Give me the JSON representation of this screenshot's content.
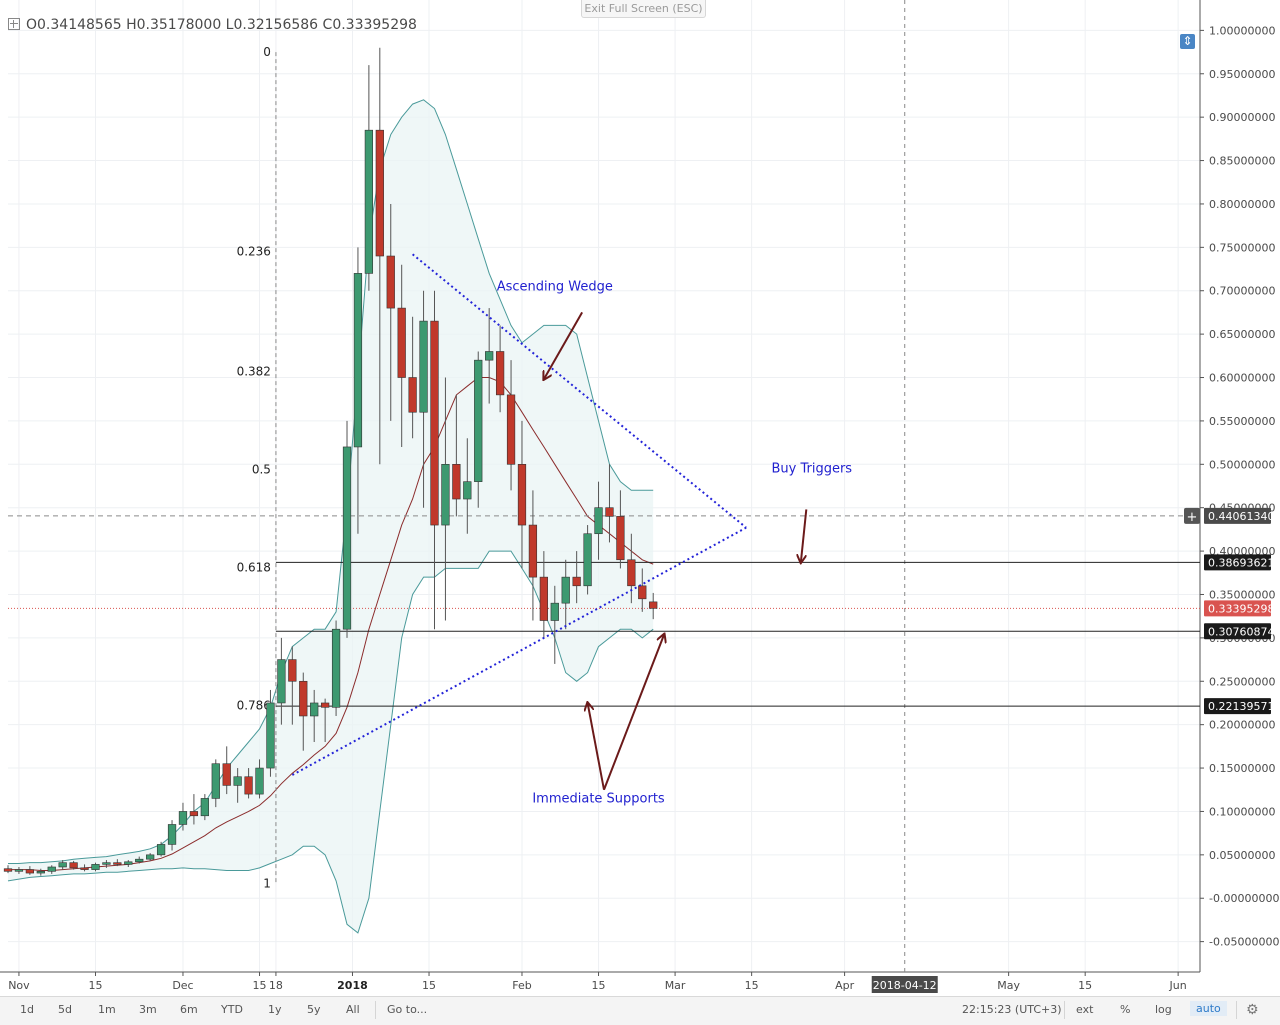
{
  "header": {
    "ohlc_text": "O0.34148565  H0.35178000  L0.32156586  C0.33395298",
    "exit_fullscreen": "Exit Full Screen (ESC)"
  },
  "chart_data": {
    "type": "candlestick",
    "y_axis": {
      "range": [
        -0.085,
        1.035
      ],
      "ticks": [
        1.0,
        0.95,
        0.9,
        0.85,
        0.8,
        0.75,
        0.7,
        0.65,
        0.6,
        0.55,
        0.5,
        0.45,
        0.4,
        0.35,
        0.3,
        0.25,
        0.2,
        0.15,
        0.1,
        0.05,
        0.0,
        -0.05
      ],
      "tick_labels": [
        "1.00000000",
        "0.95000000",
        "0.90000000",
        "0.85000000",
        "0.80000000",
        "0.75000000",
        "0.70000000",
        "0.65000000",
        "0.60000000",
        "0.55000000",
        "0.50000000",
        "0.45000000",
        "0.40000000",
        "0.35000000",
        "0.30000000",
        "0.25000000",
        "0.20000000",
        "0.15000000",
        "0.10000000",
        "0.05000000",
        "-0.00000000",
        "-0.05000000"
      ]
    },
    "x_axis": {
      "start": "2017-10-30",
      "end": "2018-06-05",
      "tick_labels": [
        {
          "date": "2017-11-01",
          "label": "Nov"
        },
        {
          "date": "2017-11-15",
          "label": "15"
        },
        {
          "date": "2017-12-01",
          "label": "Dec"
        },
        {
          "date": "2017-12-15",
          "label": "15"
        },
        {
          "date": "2017-12-18",
          "label": "18"
        },
        {
          "date": "2018-01-01",
          "label": "2018"
        },
        {
          "date": "2018-01-15",
          "label": "15"
        },
        {
          "date": "2018-02-01",
          "label": "Feb"
        },
        {
          "date": "2018-02-15",
          "label": "15"
        },
        {
          "date": "2018-03-01",
          "label": "Mar"
        },
        {
          "date": "2018-03-15",
          "label": "15"
        },
        {
          "date": "2018-04-01",
          "label": "Apr"
        },
        {
          "date": "2018-05-01",
          "label": "May"
        },
        {
          "date": "2018-05-15",
          "label": "15"
        },
        {
          "date": "2018-06-01",
          "label": "Jun"
        }
      ],
      "cursor": {
        "date": "2018-04-12",
        "label": "2018-04-12"
      }
    },
    "candles": [
      {
        "d": "2017-10-30",
        "o": 0.034,
        "h": 0.038,
        "l": 0.029,
        "c": 0.031
      },
      {
        "d": "2017-11-01",
        "o": 0.031,
        "h": 0.036,
        "l": 0.028,
        "c": 0.033
      },
      {
        "d": "2017-11-03",
        "o": 0.033,
        "h": 0.037,
        "l": 0.027,
        "c": 0.029
      },
      {
        "d": "2017-11-05",
        "o": 0.029,
        "h": 0.034,
        "l": 0.026,
        "c": 0.031
      },
      {
        "d": "2017-11-07",
        "o": 0.031,
        "h": 0.038,
        "l": 0.028,
        "c": 0.036
      },
      {
        "d": "2017-11-09",
        "o": 0.036,
        "h": 0.044,
        "l": 0.033,
        "c": 0.041
      },
      {
        "d": "2017-11-11",
        "o": 0.041,
        "h": 0.043,
        "l": 0.033,
        "c": 0.035
      },
      {
        "d": "2017-11-13",
        "o": 0.035,
        "h": 0.039,
        "l": 0.031,
        "c": 0.033
      },
      {
        "d": "2017-11-15",
        "o": 0.033,
        "h": 0.041,
        "l": 0.031,
        "c": 0.039
      },
      {
        "d": "2017-11-17",
        "o": 0.039,
        "h": 0.044,
        "l": 0.035,
        "c": 0.041
      },
      {
        "d": "2017-11-19",
        "o": 0.041,
        "h": 0.045,
        "l": 0.037,
        "c": 0.039
      },
      {
        "d": "2017-11-21",
        "o": 0.039,
        "h": 0.044,
        "l": 0.036,
        "c": 0.042
      },
      {
        "d": "2017-11-23",
        "o": 0.042,
        "h": 0.048,
        "l": 0.04,
        "c": 0.045
      },
      {
        "d": "2017-11-25",
        "o": 0.045,
        "h": 0.052,
        "l": 0.043,
        "c": 0.05
      },
      {
        "d": "2017-11-27",
        "o": 0.05,
        "h": 0.065,
        "l": 0.048,
        "c": 0.062
      },
      {
        "d": "2017-11-29",
        "o": 0.062,
        "h": 0.09,
        "l": 0.055,
        "c": 0.085
      },
      {
        "d": "2017-12-01",
        "o": 0.085,
        "h": 0.11,
        "l": 0.078,
        "c": 0.1
      },
      {
        "d": "2017-12-03",
        "o": 0.1,
        "h": 0.12,
        "l": 0.085,
        "c": 0.095
      },
      {
        "d": "2017-12-05",
        "o": 0.095,
        "h": 0.12,
        "l": 0.09,
        "c": 0.115
      },
      {
        "d": "2017-12-07",
        "o": 0.115,
        "h": 0.16,
        "l": 0.105,
        "c": 0.155
      },
      {
        "d": "2017-12-09",
        "o": 0.155,
        "h": 0.175,
        "l": 0.12,
        "c": 0.13
      },
      {
        "d": "2017-12-11",
        "o": 0.13,
        "h": 0.15,
        "l": 0.11,
        "c": 0.14
      },
      {
        "d": "2017-12-13",
        "o": 0.14,
        "h": 0.15,
        "l": 0.115,
        "c": 0.12
      },
      {
        "d": "2017-12-15",
        "o": 0.12,
        "h": 0.16,
        "l": 0.115,
        "c": 0.15
      },
      {
        "d": "2017-12-17",
        "o": 0.15,
        "h": 0.24,
        "l": 0.14,
        "c": 0.225
      },
      {
        "d": "2017-12-19",
        "o": 0.225,
        "h": 0.3,
        "l": 0.2,
        "c": 0.275
      },
      {
        "d": "2017-12-21",
        "o": 0.275,
        "h": 0.29,
        "l": 0.2,
        "c": 0.25
      },
      {
        "d": "2017-12-23",
        "o": 0.25,
        "h": 0.26,
        "l": 0.17,
        "c": 0.21
      },
      {
        "d": "2017-12-25",
        "o": 0.21,
        "h": 0.24,
        "l": 0.18,
        "c": 0.225
      },
      {
        "d": "2017-12-27",
        "o": 0.225,
        "h": 0.23,
        "l": 0.18,
        "c": 0.22
      },
      {
        "d": "2017-12-29",
        "o": 0.22,
        "h": 0.32,
        "l": 0.21,
        "c": 0.31
      },
      {
        "d": "2017-12-31",
        "o": 0.31,
        "h": 0.55,
        "l": 0.3,
        "c": 0.52
      },
      {
        "d": "2018-01-02",
        "o": 0.52,
        "h": 0.75,
        "l": 0.42,
        "c": 0.72
      },
      {
        "d": "2018-01-04",
        "o": 0.72,
        "h": 0.96,
        "l": 0.7,
        "c": 0.885
      },
      {
        "d": "2018-01-06",
        "o": 0.885,
        "h": 0.98,
        "l": 0.5,
        "c": 0.74
      },
      {
        "d": "2018-01-08",
        "o": 0.74,
        "h": 0.8,
        "l": 0.55,
        "c": 0.68
      },
      {
        "d": "2018-01-10",
        "o": 0.68,
        "h": 0.73,
        "l": 0.52,
        "c": 0.6
      },
      {
        "d": "2018-01-12",
        "o": 0.6,
        "h": 0.67,
        "l": 0.53,
        "c": 0.56
      },
      {
        "d": "2018-01-14",
        "o": 0.56,
        "h": 0.7,
        "l": 0.45,
        "c": 0.665
      },
      {
        "d": "2018-01-16",
        "o": 0.665,
        "h": 0.7,
        "l": 0.31,
        "c": 0.43
      },
      {
        "d": "2018-01-18",
        "o": 0.43,
        "h": 0.6,
        "l": 0.32,
        "c": 0.5
      },
      {
        "d": "2018-01-20",
        "o": 0.5,
        "h": 0.58,
        "l": 0.44,
        "c": 0.46
      },
      {
        "d": "2018-01-22",
        "o": 0.46,
        "h": 0.53,
        "l": 0.42,
        "c": 0.48
      },
      {
        "d": "2018-01-24",
        "o": 0.48,
        "h": 0.63,
        "l": 0.45,
        "c": 0.62
      },
      {
        "d": "2018-01-26",
        "o": 0.62,
        "h": 0.68,
        "l": 0.57,
        "c": 0.63
      },
      {
        "d": "2018-01-28",
        "o": 0.63,
        "h": 0.66,
        "l": 0.56,
        "c": 0.58
      },
      {
        "d": "2018-01-30",
        "o": 0.58,
        "h": 0.62,
        "l": 0.47,
        "c": 0.5
      },
      {
        "d": "2018-02-01",
        "o": 0.5,
        "h": 0.55,
        "l": 0.38,
        "c": 0.43
      },
      {
        "d": "2018-02-03",
        "o": 0.43,
        "h": 0.47,
        "l": 0.32,
        "c": 0.37
      },
      {
        "d": "2018-02-05",
        "o": 0.37,
        "h": 0.4,
        "l": 0.3,
        "c": 0.32
      },
      {
        "d": "2018-02-07",
        "o": 0.32,
        "h": 0.36,
        "l": 0.27,
        "c": 0.34
      },
      {
        "d": "2018-02-09",
        "o": 0.34,
        "h": 0.39,
        "l": 0.31,
        "c": 0.37
      },
      {
        "d": "2018-02-11",
        "o": 0.37,
        "h": 0.4,
        "l": 0.34,
        "c": 0.36
      },
      {
        "d": "2018-02-13",
        "o": 0.36,
        "h": 0.43,
        "l": 0.35,
        "c": 0.42
      },
      {
        "d": "2018-02-15",
        "o": 0.42,
        "h": 0.48,
        "l": 0.39,
        "c": 0.45
      },
      {
        "d": "2018-02-17",
        "o": 0.45,
        "h": 0.5,
        "l": 0.41,
        "c": 0.44
      },
      {
        "d": "2018-02-19",
        "o": 0.44,
        "h": 0.47,
        "l": 0.38,
        "c": 0.39
      },
      {
        "d": "2018-02-21",
        "o": 0.39,
        "h": 0.42,
        "l": 0.34,
        "c": 0.36
      },
      {
        "d": "2018-02-23",
        "o": 0.36,
        "h": 0.38,
        "l": 0.33,
        "c": 0.345
      },
      {
        "d": "2018-02-25",
        "o": 0.34148565,
        "h": 0.35178,
        "l": 0.32156586,
        "c": 0.33395298
      }
    ],
    "indicators": {
      "moving_average": {
        "color": "#8b2c2c",
        "values": [
          0.033,
          0.033,
          0.033,
          0.032,
          0.032,
          0.033,
          0.034,
          0.035,
          0.036,
          0.037,
          0.038,
          0.039,
          0.041,
          0.043,
          0.046,
          0.051,
          0.058,
          0.065,
          0.072,
          0.081,
          0.088,
          0.094,
          0.1,
          0.107,
          0.118,
          0.132,
          0.144,
          0.154,
          0.165,
          0.175,
          0.19,
          0.22,
          0.26,
          0.31,
          0.35,
          0.39,
          0.43,
          0.46,
          0.5,
          0.52,
          0.55,
          0.58,
          0.59,
          0.6,
          0.6,
          0.595,
          0.58,
          0.56,
          0.54,
          0.52,
          0.5,
          0.48,
          0.46,
          0.44,
          0.43,
          0.42,
          0.41,
          0.4,
          0.39,
          0.385
        ]
      },
      "bollinger_upper": {
        "color": "#4a9a9a",
        "values": [
          0.04,
          0.04,
          0.041,
          0.041,
          0.042,
          0.043,
          0.045,
          0.046,
          0.047,
          0.048,
          0.05,
          0.052,
          0.054,
          0.057,
          0.062,
          0.072,
          0.085,
          0.1,
          0.11,
          0.13,
          0.15,
          0.165,
          0.18,
          0.195,
          0.22,
          0.26,
          0.29,
          0.3,
          0.31,
          0.31,
          0.33,
          0.45,
          0.6,
          0.76,
          0.84,
          0.88,
          0.9,
          0.915,
          0.92,
          0.91,
          0.88,
          0.84,
          0.8,
          0.76,
          0.72,
          0.69,
          0.66,
          0.64,
          0.65,
          0.66,
          0.66,
          0.66,
          0.65,
          0.6,
          0.55,
          0.5,
          0.48,
          0.47,
          0.47,
          0.47
        ]
      },
      "bollinger_lower": {
        "color": "#4a9a9a",
        "values": [
          0.02,
          0.022,
          0.024,
          0.025,
          0.026,
          0.027,
          0.028,
          0.028,
          0.029,
          0.03,
          0.03,
          0.031,
          0.032,
          0.033,
          0.034,
          0.034,
          0.035,
          0.034,
          0.034,
          0.033,
          0.032,
          0.032,
          0.032,
          0.035,
          0.04,
          0.045,
          0.05,
          0.06,
          0.06,
          0.05,
          0.02,
          -0.03,
          -0.04,
          0.0,
          0.1,
          0.2,
          0.3,
          0.35,
          0.37,
          0.37,
          0.38,
          0.38,
          0.38,
          0.38,
          0.4,
          0.4,
          0.4,
          0.38,
          0.36,
          0.33,
          0.3,
          0.26,
          0.25,
          0.26,
          0.29,
          0.3,
          0.31,
          0.31,
          0.3,
          0.31
        ]
      }
    },
    "fibonacci_levels": [
      {
        "label": "0",
        "value": 0.975
      },
      {
        "label": "0.236",
        "value": 0.745
      },
      {
        "label": "0.382",
        "value": 0.607
      },
      {
        "label": "0.5",
        "value": 0.494
      },
      {
        "label": "0.618",
        "value": 0.381
      },
      {
        "label": "0.786",
        "value": 0.222
      },
      {
        "label": "1",
        "value": 0.017
      }
    ],
    "horizontal_lines": [
      {
        "value": 0.38693621,
        "label": "0.38693621",
        "style": "solid",
        "color": "#222222"
      },
      {
        "value": 0.30760874,
        "label": "0.30760874",
        "style": "solid",
        "color": "#222222"
      },
      {
        "value": 0.22139571,
        "label": "0.22139571",
        "style": "solid",
        "color": "#222222"
      },
      {
        "value": 0.33395298,
        "label": "0.33395298",
        "style": "dotted",
        "color": "#d9534f"
      },
      {
        "value": 0.4406134,
        "label": "0.44061340",
        "style": "dashed",
        "color": "#8a8a8a"
      }
    ],
    "annotations": [
      {
        "text": "Ascending Wedge",
        "date": "2018-02-07",
        "value": 0.705
      },
      {
        "text": "Buy Triggers",
        "date": "2018-03-26",
        "value": 0.495
      },
      {
        "text": "Immediate Supports",
        "date": "2018-02-15",
        "value": 0.115
      }
    ],
    "grid": true,
    "colors": {
      "up": "#3d9970",
      "down": "#c0392b",
      "trendline": "#2424d8",
      "arrow": "#6b1a1a",
      "band_fill": "#eaf4f4"
    }
  },
  "toolbar": {
    "ranges": [
      "1d",
      "5d",
      "1m",
      "3m",
      "6m",
      "YTD",
      "1y",
      "5y",
      "All"
    ],
    "goto": "Go to...",
    "clock": "22:15:23 (UTC+3)",
    "options": [
      "ext",
      "%",
      "log"
    ],
    "auto": "auto"
  }
}
